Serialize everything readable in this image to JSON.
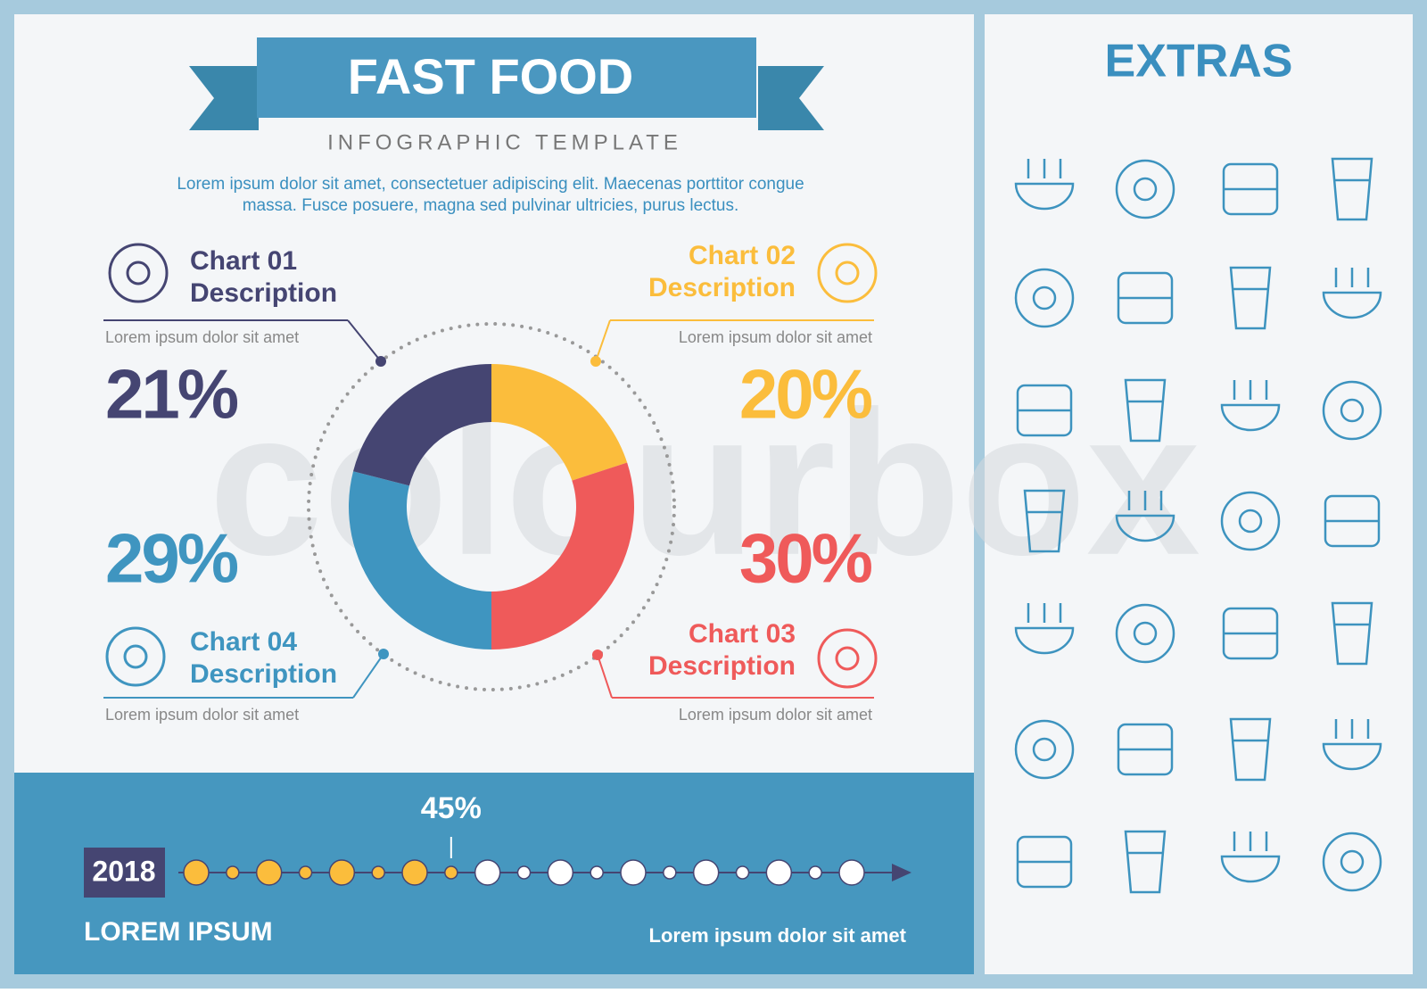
{
  "header": {
    "title": "FAST FOOD",
    "subtitle": "INFOGRAPHIC TEMPLATE",
    "intro": [
      "Lorem ipsum dolor sit amet, consectetuer adipiscing elit. Maecenas porttitor congue",
      "massa. Fusce posuere, magna sed pulvinar ultricies, purus lectus."
    ]
  },
  "chart_data": {
    "type": "donut",
    "categories": [
      "Chart 02",
      "Chart 03",
      "Chart 04",
      "Chart 01"
    ],
    "values": [
      20,
      30,
      29,
      21
    ],
    "value_labels": [
      "20%",
      "30%",
      "29%",
      "21%"
    ],
    "colors": [
      "#fbbd3c",
      "#ef5a5a",
      "#3f95c0",
      "#454572"
    ]
  },
  "panels": [
    {
      "subtitle": "Description",
      "text": "Lorem ipsum dolor sit amet"
    },
    {
      "subtitle": "Description",
      "text": "Lorem ipsum dolor sit amet"
    },
    {
      "subtitle": "Description",
      "text": "Lorem ipsum dolor sit amet"
    },
    {
      "subtitle": "Description",
      "text": "Lorem ipsum dolor sit amet"
    }
  ],
  "timeline": {
    "year": "2018",
    "progress": 45,
    "progress_label": "45%",
    "caption": "LOREM IPSUM",
    "note": "Lorem ipsum dolor sit amet"
  },
  "extras": {
    "title": "EXTRAS"
  },
  "watermark": "colourbox"
}
